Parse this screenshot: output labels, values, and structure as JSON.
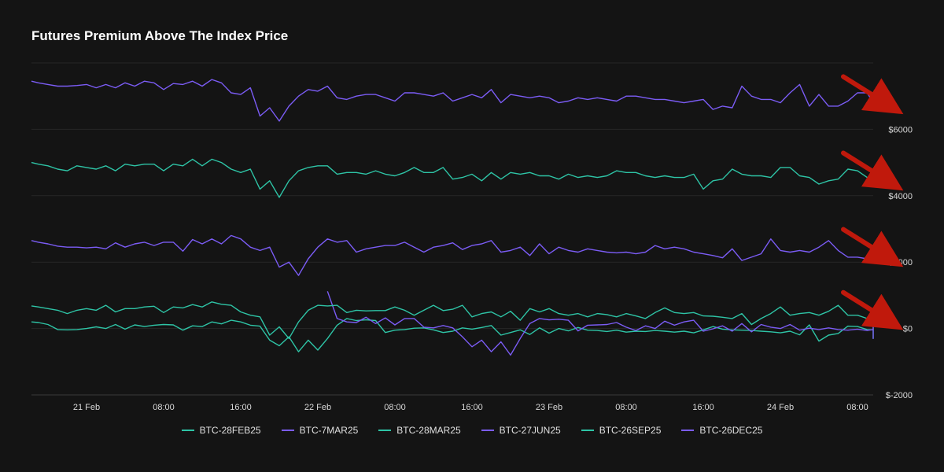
{
  "title": "Futures Premium Above The Index Price",
  "colors": {
    "background": "#141414",
    "teal": "#2ec4a6",
    "purple": "#7b5cf5",
    "blue": "#4fa3ff",
    "arrow": "#c0190c",
    "grid": "#262626",
    "tick": "#d8d8d8"
  },
  "chart_data": {
    "type": "line",
    "title": "Futures Premium Above The Index Price",
    "xlabel": "",
    "ylabel": "",
    "ylim": [
      -2000,
      8000
    ],
    "yticks": [
      -2000,
      0,
      2000,
      4000,
      6000
    ],
    "ytick_labels": [
      "$-2000",
      "$0",
      "$2000",
      "$4000",
      "$6000"
    ],
    "x_tick_labels": [
      "21 Feb",
      "08:00",
      "16:00",
      "22 Feb",
      "08:00",
      "16:00",
      "23 Feb",
      "08:00",
      "16:00",
      "24 Feb",
      "08:00"
    ],
    "legend_position": "bottom",
    "grid": true,
    "annotations": [
      "red arrow pointing at end of each series group"
    ],
    "x_step_hours": 1,
    "x_start_hours": -6,
    "series": [
      {
        "name": "BTC-28FEB25",
        "color": "#2ec4a6",
        "start_hour": -6,
        "values": [
          200,
          180,
          120,
          -30,
          -40,
          -30,
          0,
          50,
          0,
          120,
          -20,
          110,
          60,
          100,
          120,
          110,
          -50,
          80,
          60,
          200,
          140,
          250,
          200,
          100,
          70,
          -350,
          -520,
          -250,
          -700,
          -350,
          -650,
          -300,
          100,
          300,
          240,
          260,
          240,
          -120,
          -50,
          -30,
          10,
          20,
          -40,
          -120,
          -80,
          20,
          -20,
          30,
          90,
          -200,
          -120,
          -40,
          -180,
          20,
          -140,
          0,
          -70,
          30,
          -50,
          -60,
          -90,
          -50,
          -110,
          -80,
          -90,
          -60,
          -80,
          -110,
          -80,
          -130,
          -40,
          60,
          -20,
          -40,
          -50,
          -60,
          -80,
          -100,
          -130,
          -80,
          -190,
          110,
          -380,
          -200,
          -150,
          70,
          60,
          -30,
          -40,
          -80,
          -80,
          -60,
          -50,
          340,
          -100,
          -130,
          -280,
          -300,
          -180,
          100,
          80,
          -30,
          -200
        ]
      },
      {
        "name": "BTC-7MAR25",
        "color": "#7b5cf5",
        "start_hour": 25,
        "values": [
          1120,
          300,
          200,
          180,
          340,
          150,
          320,
          110,
          300,
          300,
          40,
          20,
          90,
          20,
          -250,
          -550,
          -350,
          -700,
          -400,
          -800,
          -300,
          150,
          300,
          260,
          280,
          250,
          -70,
          100,
          110,
          120,
          180,
          40,
          -60,
          80,
          0,
          220,
          100,
          200,
          250,
          -80,
          -10,
          80,
          -80,
          150,
          -100,
          120,
          40,
          0,
          120,
          -50,
          10,
          -30,
          20,
          -30,
          -50,
          -20,
          -60,
          -30,
          -60,
          0,
          130,
          30,
          30,
          10,
          -30,
          -40,
          -60,
          -10,
          -20,
          -50,
          -200,
          -300,
          -100,
          -70,
          150,
          60,
          80,
          120,
          170,
          0,
          180,
          -10,
          -50,
          -20,
          -120,
          -140,
          -70,
          190,
          170,
          80,
          -80
        ]
      },
      {
        "name": "BTC-28MAR25",
        "color": "#2ec4a6",
        "start_hour": -6,
        "values": [
          680,
          650,
          600,
          550,
          450,
          550,
          600,
          550,
          700,
          500,
          600,
          600,
          650,
          670,
          480,
          650,
          620,
          720,
          650,
          800,
          730,
          700,
          500,
          400,
          350,
          -200,
          50,
          -300,
          200,
          550,
          700,
          680,
          700,
          480,
          550,
          530,
          540,
          540,
          650,
          550,
          400,
          550,
          700,
          540,
          580,
          700,
          350,
          450,
          500,
          350,
          520,
          250,
          600,
          500,
          600,
          450,
          400,
          450,
          350,
          450,
          420,
          350,
          450,
          380,
          300,
          480,
          620,
          480,
          450,
          480,
          380,
          370,
          340,
          300,
          450,
          120,
          300,
          450,
          650,
          400,
          450,
          480,
          400,
          520,
          700,
          400,
          400,
          300,
          200,
          300,
          550,
          600,
          480,
          250
        ]
      },
      {
        "name": "BTC-27JUN25",
        "color": "#7b5cf5",
        "start_hour": -6,
        "values": [
          2650,
          2600,
          2550,
          2480,
          2450,
          2450,
          2430,
          2450,
          2400,
          2580,
          2450,
          2550,
          2600,
          2500,
          2600,
          2600,
          2330,
          2680,
          2550,
          2700,
          2550,
          2800,
          2700,
          2450,
          2350,
          2450,
          1850,
          2000,
          1600,
          2100,
          2450,
          2700,
          2600,
          2650,
          2300,
          2400,
          2450,
          2500,
          2500,
          2600,
          2450,
          2300,
          2450,
          2500,
          2580,
          2380,
          2500,
          2550,
          2650,
          2300,
          2350,
          2450,
          2200,
          2550,
          2250,
          2450,
          2350,
          2300,
          2400,
          2350,
          2300,
          2280,
          2300,
          2250,
          2300,
          2500,
          2400,
          2450,
          2400,
          2300,
          2250,
          2200,
          2130,
          2400,
          2050,
          2150,
          2250,
          2700,
          2350,
          2300,
          2350,
          2300,
          2450,
          2650,
          2350,
          2150,
          2150,
          2100,
          2300,
          2500,
          2500,
          2350,
          2150
        ]
      },
      {
        "name": "BTC-26SEP25",
        "color": "#2ec4a6",
        "start_hour": -6,
        "values": [
          5000,
          4950,
          4900,
          4800,
          4750,
          4900,
          4850,
          4800,
          4900,
          4750,
          4950,
          4900,
          4950,
          4950,
          4750,
          4950,
          4900,
          5100,
          4900,
          5100,
          5000,
          4800,
          4700,
          4800,
          4200,
          4450,
          3950,
          4450,
          4750,
          4850,
          4900,
          4900,
          4650,
          4700,
          4700,
          4650,
          4750,
          4650,
          4600,
          4700,
          4850,
          4700,
          4700,
          4850,
          4500,
          4550,
          4650,
          4450,
          4700,
          4500,
          4700,
          4650,
          4700,
          4600,
          4600,
          4500,
          4650,
          4550,
          4600,
          4550,
          4600,
          4750,
          4700,
          4700,
          4600,
          4550,
          4600,
          4550,
          4550,
          4650,
          4200,
          4450,
          4500,
          4800,
          4650,
          4600,
          4600,
          4550,
          4850,
          4850,
          4600,
          4550,
          4350,
          4450,
          4500,
          4800,
          4750,
          4550,
          4450
        ]
      },
      {
        "name": "BTC-26DEC25",
        "color": "#7b5cf5",
        "start_hour": -6,
        "values": [
          7450,
          7400,
          7350,
          7300,
          7300,
          7320,
          7350,
          7250,
          7350,
          7250,
          7400,
          7300,
          7450,
          7400,
          7200,
          7380,
          7350,
          7450,
          7300,
          7500,
          7400,
          7100,
          7050,
          7250,
          6400,
          6650,
          6250,
          6700,
          7000,
          7200,
          7150,
          7300,
          6950,
          6900,
          7000,
          7050,
          7050,
          6950,
          6850,
          7100,
          7100,
          7050,
          7000,
          7100,
          6850,
          6950,
          7050,
          6950,
          7200,
          6800,
          7050,
          7000,
          6950,
          7000,
          6950,
          6800,
          6850,
          6950,
          6900,
          6950,
          6900,
          6850,
          7000,
          7000,
          6950,
          6900,
          6900,
          6850,
          6800,
          6850,
          6900,
          6600,
          6700,
          6650,
          7300,
          7000,
          6900,
          6900,
          6800,
          7100,
          7350,
          6700,
          7050,
          6700,
          6700,
          6850,
          7100,
          7100,
          6800
        ]
      }
    ]
  }
}
